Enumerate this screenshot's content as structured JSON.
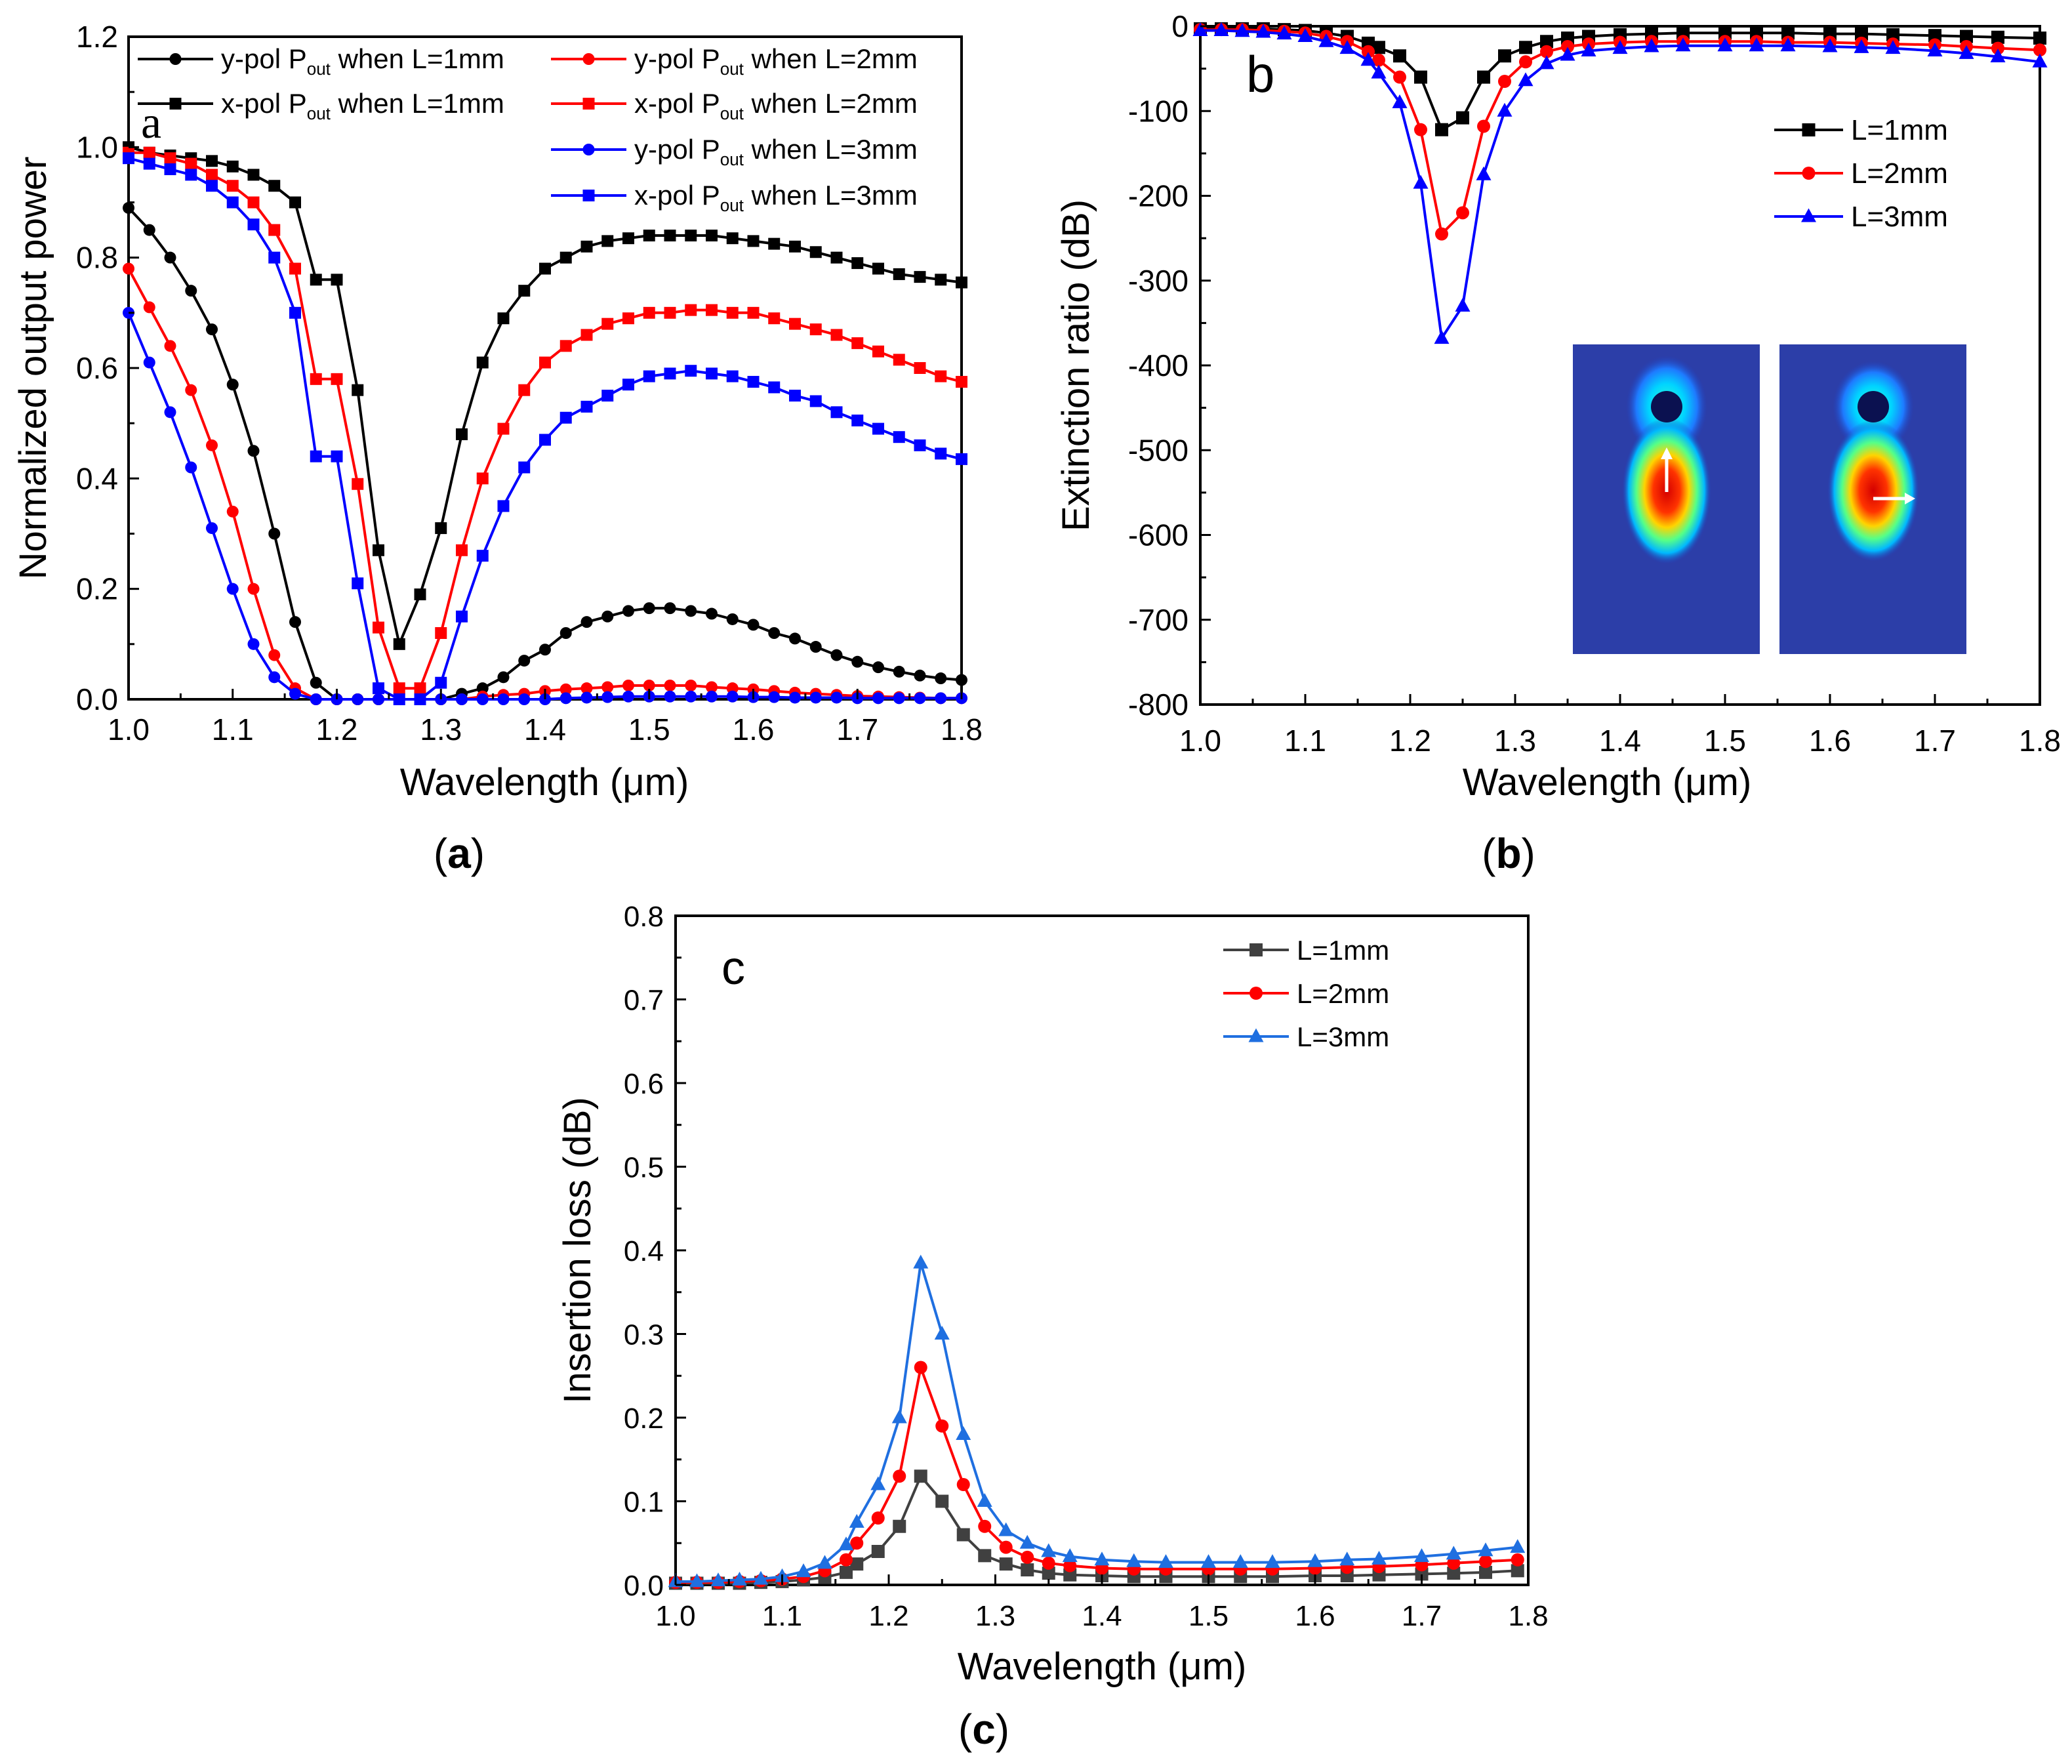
{
  "chart_data": [
    {
      "id": "a",
      "type": "line",
      "panel_letter": "a",
      "caption_open": "(",
      "caption_letter": "a",
      "caption_close": ")",
      "xlabel": "Wavelength (μm)",
      "ylabel": "Normalized output power",
      "xlim": [
        1.0,
        1.8
      ],
      "ylim": [
        0.0,
        1.2
      ],
      "xticks": [
        "1.0",
        "1.1",
        "1.2",
        "1.3",
        "1.4",
        "1.5",
        "1.6",
        "1.7",
        "1.8"
      ],
      "yticks": [
        "0.0",
        "0.2",
        "0.4",
        "0.6",
        "0.8",
        "1.0",
        "1.2"
      ],
      "grid": false,
      "legend_position": "top",
      "x": [
        1.0,
        1.02,
        1.04,
        1.06,
        1.08,
        1.1,
        1.12,
        1.14,
        1.16,
        1.18,
        1.2,
        1.22,
        1.24,
        1.26,
        1.28,
        1.3,
        1.32,
        1.34,
        1.36,
        1.38,
        1.4,
        1.42,
        1.44,
        1.46,
        1.48,
        1.5,
        1.52,
        1.54,
        1.56,
        1.58,
        1.6,
        1.62,
        1.64,
        1.66,
        1.68,
        1.7,
        1.72,
        1.74,
        1.76,
        1.78,
        1.8
      ],
      "series": [
        {
          "name_prefix": "y-pol P",
          "name_sub": "out",
          "name_suffix": " when L=1mm",
          "color": "#000000",
          "marker": "circle",
          "values": [
            0.89,
            0.85,
            0.8,
            0.74,
            0.67,
            0.57,
            0.45,
            0.3,
            0.14,
            0.03,
            0.0,
            0.0,
            0.0,
            0.0,
            0.0,
            0.0,
            0.01,
            0.02,
            0.04,
            0.07,
            0.09,
            0.12,
            0.14,
            0.15,
            0.16,
            0.165,
            0.165,
            0.16,
            0.155,
            0.145,
            0.135,
            0.12,
            0.11,
            0.095,
            0.08,
            0.068,
            0.058,
            0.05,
            0.043,
            0.038,
            0.035
          ]
        },
        {
          "name_prefix": "x-pol P",
          "name_sub": "out",
          "name_suffix": " when L=1mm",
          "color": "#000000",
          "marker": "square",
          "values": [
            1.0,
            0.99,
            0.985,
            0.98,
            0.975,
            0.965,
            0.95,
            0.93,
            0.9,
            0.76,
            0.76,
            0.56,
            0.27,
            0.1,
            0.19,
            0.31,
            0.48,
            0.61,
            0.69,
            0.74,
            0.78,
            0.8,
            0.82,
            0.83,
            0.835,
            0.84,
            0.84,
            0.84,
            0.84,
            0.835,
            0.83,
            0.825,
            0.82,
            0.81,
            0.8,
            0.79,
            0.78,
            0.77,
            0.765,
            0.76,
            0.755
          ]
        },
        {
          "name_prefix": "y-pol P",
          "name_sub": "out",
          "name_suffix": " when L=2mm",
          "color": "#ff0000",
          "marker": "circle",
          "values": [
            0.78,
            0.71,
            0.64,
            0.56,
            0.46,
            0.34,
            0.2,
            0.08,
            0.02,
            0.0,
            0.0,
            0.0,
            0.0,
            0.0,
            0.0,
            0.0,
            0.0,
            0.005,
            0.008,
            0.01,
            0.015,
            0.018,
            0.02,
            0.022,
            0.025,
            0.025,
            0.025,
            0.025,
            0.022,
            0.02,
            0.018,
            0.015,
            0.012,
            0.01,
            0.008,
            0.006,
            0.005,
            0.004,
            0.003,
            0.002,
            0.002
          ]
        },
        {
          "name_prefix": "x-pol P",
          "name_sub": "out",
          "name_suffix": " when L=2mm",
          "color": "#ff0000",
          "marker": "square",
          "values": [
            0.99,
            0.99,
            0.98,
            0.97,
            0.95,
            0.93,
            0.9,
            0.85,
            0.78,
            0.58,
            0.58,
            0.39,
            0.13,
            0.02,
            0.02,
            0.12,
            0.27,
            0.4,
            0.49,
            0.56,
            0.61,
            0.64,
            0.66,
            0.68,
            0.69,
            0.7,
            0.7,
            0.705,
            0.705,
            0.7,
            0.7,
            0.69,
            0.68,
            0.67,
            0.66,
            0.645,
            0.63,
            0.615,
            0.6,
            0.585,
            0.575
          ]
        },
        {
          "name_prefix": "y-pol P",
          "name_sub": "out",
          "name_suffix": " when L=3mm",
          "color": "#0000ff",
          "marker": "circle",
          "values": [
            0.7,
            0.61,
            0.52,
            0.42,
            0.31,
            0.2,
            0.1,
            0.04,
            0.01,
            0.0,
            0.0,
            0.0,
            0.0,
            0.0,
            0.0,
            0.0,
            0.0,
            0.0,
            0.0,
            0.0,
            0.0,
            0.002,
            0.003,
            0.004,
            0.005,
            0.005,
            0.005,
            0.005,
            0.005,
            0.005,
            0.004,
            0.004,
            0.003,
            0.003,
            0.003,
            0.002,
            0.002,
            0.002,
            0.002,
            0.002,
            0.002
          ]
        },
        {
          "name_prefix": "x-pol P",
          "name_sub": "out",
          "name_suffix": " when L=3mm",
          "color": "#0000ff",
          "marker": "square",
          "values": [
            0.98,
            0.97,
            0.96,
            0.95,
            0.93,
            0.9,
            0.86,
            0.8,
            0.7,
            0.44,
            0.44,
            0.21,
            0.02,
            0.0,
            0.0,
            0.03,
            0.15,
            0.26,
            0.35,
            0.42,
            0.47,
            0.51,
            0.53,
            0.55,
            0.57,
            0.585,
            0.59,
            0.595,
            0.59,
            0.585,
            0.575,
            0.565,
            0.55,
            0.54,
            0.52,
            0.505,
            0.49,
            0.475,
            0.46,
            0.445,
            0.435
          ]
        }
      ]
    },
    {
      "id": "b",
      "type": "line",
      "panel_letter": "b",
      "caption_open": "(",
      "caption_letter": "b",
      "caption_close": ")",
      "xlabel": "Wavelength (μm)",
      "ylabel": "Extinction ratio (dB)",
      "xlim": [
        1.0,
        1.8
      ],
      "ylim": [
        -800,
        0
      ],
      "xticks": [
        "1.0",
        "1.1",
        "1.2",
        "1.3",
        "1.4",
        "1.5",
        "1.6",
        "1.7",
        "1.8"
      ],
      "yticks": [
        "-800",
        "-700",
        "-600",
        "-500",
        "-400",
        "-300",
        "-200",
        "-100",
        "0"
      ],
      "grid": false,
      "legend_position": "upper-right",
      "inset": "two mode-field distribution images (y-polarized and x-polarized core modes)",
      "x": [
        1.0,
        1.02,
        1.04,
        1.06,
        1.08,
        1.1,
        1.12,
        1.14,
        1.16,
        1.17,
        1.19,
        1.21,
        1.23,
        1.25,
        1.27,
        1.29,
        1.31,
        1.33,
        1.35,
        1.37,
        1.4,
        1.43,
        1.46,
        1.5,
        1.53,
        1.56,
        1.6,
        1.63,
        1.66,
        1.7,
        1.73,
        1.76,
        1.8
      ],
      "series": [
        {
          "name": "L=1mm",
          "color": "#000000",
          "marker": "square",
          "values": [
            -3,
            -3,
            -3,
            -3,
            -4,
            -5,
            -8,
            -12,
            -20,
            -25,
            -35,
            -60,
            -122,
            -108,
            -60,
            -35,
            -25,
            -18,
            -14,
            -12,
            -10,
            -9,
            -8,
            -8,
            -8,
            -8,
            -9,
            -9,
            -10,
            -11,
            -12,
            -13,
            -14
          ]
        },
        {
          "name": "L=2mm",
          "color": "#ff0000",
          "marker": "circle",
          "values": [
            -4,
            -4,
            -4,
            -5,
            -6,
            -8,
            -12,
            -18,
            -30,
            -40,
            -60,
            -122,
            -245,
            -220,
            -118,
            -65,
            -42,
            -30,
            -24,
            -21,
            -19,
            -18,
            -18,
            -18,
            -18,
            -19,
            -19,
            -20,
            -21,
            -22,
            -24,
            -26,
            -28
          ]
        },
        {
          "name": "L=3mm",
          "color": "#0000ff",
          "marker": "triangle",
          "values": [
            -5,
            -5,
            -6,
            -7,
            -9,
            -12,
            -18,
            -26,
            -40,
            -55,
            -90,
            -185,
            -368,
            -330,
            -175,
            -100,
            -64,
            -44,
            -34,
            -29,
            -26,
            -24,
            -23,
            -23,
            -23,
            -23,
            -24,
            -25,
            -26,
            -29,
            -32,
            -36,
            -42
          ]
        }
      ]
    },
    {
      "id": "c",
      "type": "line",
      "panel_letter": "c",
      "caption_open": "(",
      "caption_letter": "c",
      "caption_close": ")",
      "xlabel": "Wavelength (μm)",
      "ylabel": "Insertion loss (dB)",
      "xlim": [
        1.0,
        1.8
      ],
      "ylim": [
        0.0,
        0.8
      ],
      "xticks": [
        "1.0",
        "1.1",
        "1.2",
        "1.3",
        "1.4",
        "1.5",
        "1.6",
        "1.7",
        "1.8"
      ],
      "yticks": [
        "0.0",
        "0.1",
        "0.2",
        "0.3",
        "0.4",
        "0.5",
        "0.6",
        "0.7",
        "0.8"
      ],
      "grid": false,
      "legend_position": "upper-right",
      "x": [
        1.0,
        1.02,
        1.04,
        1.06,
        1.08,
        1.1,
        1.12,
        1.14,
        1.16,
        1.17,
        1.19,
        1.21,
        1.23,
        1.25,
        1.27,
        1.29,
        1.31,
        1.33,
        1.35,
        1.37,
        1.4,
        1.43,
        1.46,
        1.5,
        1.53,
        1.56,
        1.6,
        1.63,
        1.66,
        1.7,
        1.73,
        1.76,
        1.79
      ],
      "series": [
        {
          "name": "L=1mm",
          "color": "#404040",
          "marker": "square",
          "values": [
            0.002,
            0.002,
            0.002,
            0.002,
            0.003,
            0.004,
            0.006,
            0.009,
            0.015,
            0.025,
            0.04,
            0.07,
            0.13,
            0.1,
            0.06,
            0.035,
            0.025,
            0.018,
            0.014,
            0.012,
            0.011,
            0.01,
            0.01,
            0.01,
            0.01,
            0.01,
            0.011,
            0.011,
            0.012,
            0.013,
            0.014,
            0.015,
            0.017
          ]
        },
        {
          "name": "L=2mm",
          "color": "#ff0000",
          "marker": "circle",
          "values": [
            0.003,
            0.003,
            0.003,
            0.004,
            0.005,
            0.007,
            0.01,
            0.017,
            0.03,
            0.05,
            0.08,
            0.13,
            0.26,
            0.19,
            0.12,
            0.07,
            0.045,
            0.033,
            0.026,
            0.023,
            0.02,
            0.019,
            0.019,
            0.019,
            0.019,
            0.019,
            0.02,
            0.021,
            0.022,
            0.024,
            0.026,
            0.028,
            0.03
          ]
        },
        {
          "name": "L=3mm",
          "color": "#1f6fe0",
          "marker": "triangle",
          "values": [
            0.004,
            0.004,
            0.005,
            0.006,
            0.007,
            0.01,
            0.016,
            0.026,
            0.048,
            0.075,
            0.12,
            0.2,
            0.385,
            0.3,
            0.18,
            0.1,
            0.065,
            0.05,
            0.04,
            0.034,
            0.03,
            0.028,
            0.027,
            0.027,
            0.027,
            0.027,
            0.028,
            0.03,
            0.031,
            0.034,
            0.037,
            0.041,
            0.045
          ]
        }
      ]
    }
  ]
}
